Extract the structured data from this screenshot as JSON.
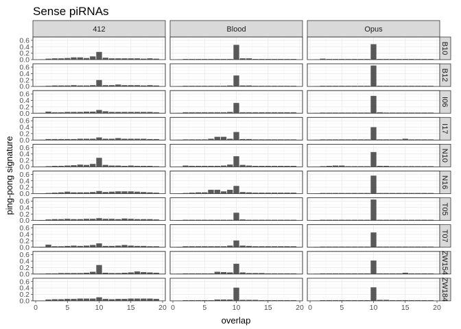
{
  "chart_data": {
    "type": "bar",
    "title": "Sense piRNAs",
    "xlabel": "overlap",
    "ylabel": "ping-pong signature",
    "xlim": [
      0,
      20
    ],
    "ylim": [
      0,
      0.65
    ],
    "x_ticks": [
      "0",
      "5",
      "10",
      "15",
      "20"
    ],
    "y_ticks": [
      "0.0",
      "0.2",
      "0.4",
      "0.6"
    ],
    "grid": true,
    "bar_color": "#595959",
    "strip_color": "#d9d9d9",
    "columns": [
      "412",
      "Blood",
      "Opus"
    ],
    "rows": [
      "B10",
      "B12",
      "I06",
      "I17",
      "N10",
      "N16",
      "T05",
      "T07",
      "ZW154",
      "ZW184"
    ],
    "x": [
      1,
      2,
      3,
      4,
      5,
      6,
      7,
      8,
      9,
      10,
      11,
      12,
      13,
      14,
      15,
      16,
      17,
      18,
      19
    ],
    "panels": {
      "412": {
        "B10": [
          0.01,
          0.03,
          0.04,
          0.04,
          0.05,
          0.07,
          0.07,
          0.05,
          0.1,
          0.24,
          0.06,
          0.04,
          0.04,
          0.04,
          0.04,
          0.04,
          0.03,
          0.04,
          0.03
        ],
        "B12": [
          0.01,
          0.02,
          0.03,
          0.03,
          0.03,
          0.04,
          0.03,
          0.03,
          0.04,
          0.2,
          0.04,
          0.04,
          0.06,
          0.04,
          0.04,
          0.04,
          0.03,
          0.04,
          0.03
        ],
        "I06": [
          0.01,
          0.05,
          0.03,
          0.03,
          0.04,
          0.04,
          0.04,
          0.05,
          0.05,
          0.1,
          0.06,
          0.04,
          0.04,
          0.04,
          0.04,
          0.04,
          0.04,
          0.04,
          0.03
        ],
        "I17": [
          0.01,
          0.03,
          0.03,
          0.03,
          0.03,
          0.03,
          0.04,
          0.04,
          0.04,
          0.08,
          0.04,
          0.04,
          0.06,
          0.04,
          0.04,
          0.04,
          0.04,
          0.03,
          0.03
        ],
        "N10": [
          0.01,
          0.02,
          0.03,
          0.03,
          0.04,
          0.05,
          0.07,
          0.06,
          0.09,
          0.28,
          0.06,
          0.04,
          0.04,
          0.03,
          0.04,
          0.03,
          0.03,
          0.03,
          0.02
        ],
        "N16": [
          0.01,
          0.02,
          0.03,
          0.04,
          0.06,
          0.04,
          0.04,
          0.04,
          0.05,
          0.08,
          0.05,
          0.06,
          0.07,
          0.07,
          0.07,
          0.06,
          0.05,
          0.04,
          0.03
        ],
        "T05": [
          0.01,
          0.03,
          0.04,
          0.04,
          0.05,
          0.04,
          0.04,
          0.05,
          0.05,
          0.07,
          0.05,
          0.05,
          0.04,
          0.06,
          0.05,
          0.04,
          0.04,
          0.04,
          0.03
        ],
        "T07": [
          0.01,
          0.08,
          0.03,
          0.03,
          0.04,
          0.05,
          0.04,
          0.05,
          0.07,
          0.12,
          0.04,
          0.04,
          0.05,
          0.07,
          0.05,
          0.04,
          0.04,
          0.03,
          0.03
        ],
        "ZW154": [
          0.01,
          0.02,
          0.02,
          0.03,
          0.03,
          0.03,
          0.03,
          0.04,
          0.07,
          0.28,
          0.04,
          0.03,
          0.03,
          0.04,
          0.05,
          0.08,
          0.06,
          0.05,
          0.04
        ],
        "ZW184": [
          0.01,
          0.04,
          0.05,
          0.05,
          0.06,
          0.06,
          0.07,
          0.07,
          0.07,
          0.11,
          0.06,
          0.05,
          0.06,
          0.06,
          0.07,
          0.07,
          0.07,
          0.07,
          0.06
        ]
      },
      "Blood": {
        "B10": [
          0.01,
          0.02,
          0.02,
          0.02,
          0.02,
          0.02,
          0.02,
          0.02,
          0.02,
          0.46,
          0.04,
          0.04,
          0.02,
          0.02,
          0.02,
          0.02,
          0.02,
          0.02,
          0.02
        ],
        "B12": [
          0.01,
          0.02,
          0.02,
          0.02,
          0.02,
          0.02,
          0.02,
          0.02,
          0.03,
          0.34,
          0.03,
          0.03,
          0.02,
          0.02,
          0.02,
          0.02,
          0.02,
          0.02,
          0.02
        ],
        "I06": [
          0.01,
          0.03,
          0.03,
          0.03,
          0.03,
          0.03,
          0.03,
          0.03,
          0.04,
          0.32,
          0.03,
          0.03,
          0.03,
          0.03,
          0.03,
          0.03,
          0.03,
          0.03,
          0.03
        ],
        "I17": [
          0.01,
          0.02,
          0.02,
          0.02,
          0.02,
          0.04,
          0.1,
          0.1,
          0.04,
          0.25,
          0.03,
          0.03,
          0.02,
          0.02,
          0.02,
          0.02,
          0.02,
          0.02,
          0.02
        ],
        "N10": [
          0.01,
          0.04,
          0.03,
          0.03,
          0.03,
          0.03,
          0.03,
          0.04,
          0.07,
          0.33,
          0.06,
          0.04,
          0.03,
          0.03,
          0.03,
          0.03,
          0.03,
          0.03,
          0.03
        ],
        "N16": [
          0.01,
          0.02,
          0.03,
          0.04,
          0.04,
          0.12,
          0.12,
          0.07,
          0.12,
          0.24,
          0.05,
          0.04,
          0.03,
          0.03,
          0.03,
          0.03,
          0.03,
          0.03,
          0.03
        ],
        "T05": [
          0.01,
          0.02,
          0.02,
          0.02,
          0.02,
          0.02,
          0.02,
          0.02,
          0.02,
          0.24,
          0.03,
          0.02,
          0.02,
          0.02,
          0.02,
          0.02,
          0.02,
          0.02,
          0.02
        ],
        "T07": [
          0.01,
          0.03,
          0.03,
          0.03,
          0.03,
          0.03,
          0.03,
          0.03,
          0.05,
          0.21,
          0.05,
          0.04,
          0.03,
          0.03,
          0.03,
          0.03,
          0.03,
          0.03,
          0.03
        ],
        "ZW154": [
          0.01,
          0.02,
          0.02,
          0.02,
          0.02,
          0.02,
          0.07,
          0.06,
          0.05,
          0.32,
          0.05,
          0.03,
          0.03,
          0.03,
          0.02,
          0.02,
          0.02,
          0.02,
          0.02
        ],
        "ZW184": [
          0.01,
          0.02,
          0.02,
          0.02,
          0.02,
          0.02,
          0.04,
          0.04,
          0.04,
          0.41,
          0.03,
          0.03,
          0.03,
          0.02,
          0.02,
          0.02,
          0.02,
          0.02,
          0.02
        ]
      },
      "Opus": {
        "B10": [
          0.01,
          0.03,
          0.02,
          0.02,
          0.02,
          0.02,
          0.02,
          0.02,
          0.02,
          0.48,
          0.02,
          0.02,
          0.02,
          0.02,
          0.02,
          0.02,
          0.02,
          0.02,
          0.02
        ],
        "B12": [
          0.01,
          0.02,
          0.02,
          0.02,
          0.02,
          0.02,
          0.02,
          0.02,
          0.02,
          0.65,
          0.02,
          0.02,
          0.02,
          0.02,
          0.02,
          0.02,
          0.02,
          0.02,
          0.02
        ],
        "I06": [
          0.01,
          0.02,
          0.02,
          0.02,
          0.02,
          0.02,
          0.02,
          0.02,
          0.02,
          0.54,
          0.03,
          0.02,
          0.02,
          0.02,
          0.02,
          0.02,
          0.02,
          0.02,
          0.02
        ],
        "I17": [
          0.01,
          0.02,
          0.02,
          0.02,
          0.02,
          0.02,
          0.02,
          0.02,
          0.02,
          0.4,
          0.02,
          0.02,
          0.02,
          0.02,
          0.04,
          0.02,
          0.02,
          0.02,
          0.02
        ],
        "N10": [
          0.01,
          0.02,
          0.03,
          0.04,
          0.04,
          0.02,
          0.02,
          0.02,
          0.02,
          0.46,
          0.03,
          0.03,
          0.02,
          0.02,
          0.02,
          0.02,
          0.02,
          0.02,
          0.02
        ],
        "N16": [
          0.01,
          0.02,
          0.02,
          0.02,
          0.02,
          0.02,
          0.02,
          0.02,
          0.02,
          0.56,
          0.02,
          0.02,
          0.02,
          0.02,
          0.02,
          0.02,
          0.02,
          0.02,
          0.02
        ],
        "T05": [
          0.01,
          0.02,
          0.02,
          0.02,
          0.02,
          0.02,
          0.02,
          0.02,
          0.02,
          0.7,
          0.02,
          0.02,
          0.02,
          0.02,
          0.02,
          0.02,
          0.02,
          0.02,
          0.02
        ],
        "T07": [
          0.01,
          0.02,
          0.02,
          0.02,
          0.02,
          0.02,
          0.02,
          0.02,
          0.02,
          0.46,
          0.02,
          0.02,
          0.02,
          0.02,
          0.02,
          0.02,
          0.02,
          0.02,
          0.02
        ],
        "ZW154": [
          0.01,
          0.02,
          0.02,
          0.02,
          0.02,
          0.02,
          0.02,
          0.02,
          0.02,
          0.42,
          0.02,
          0.02,
          0.02,
          0.02,
          0.04,
          0.02,
          0.02,
          0.02,
          0.02
        ],
        "ZW184": [
          0.01,
          0.02,
          0.02,
          0.02,
          0.02,
          0.02,
          0.02,
          0.02,
          0.02,
          0.42,
          0.03,
          0.03,
          0.02,
          0.02,
          0.02,
          0.02,
          0.02,
          0.02,
          0.02
        ]
      }
    }
  }
}
